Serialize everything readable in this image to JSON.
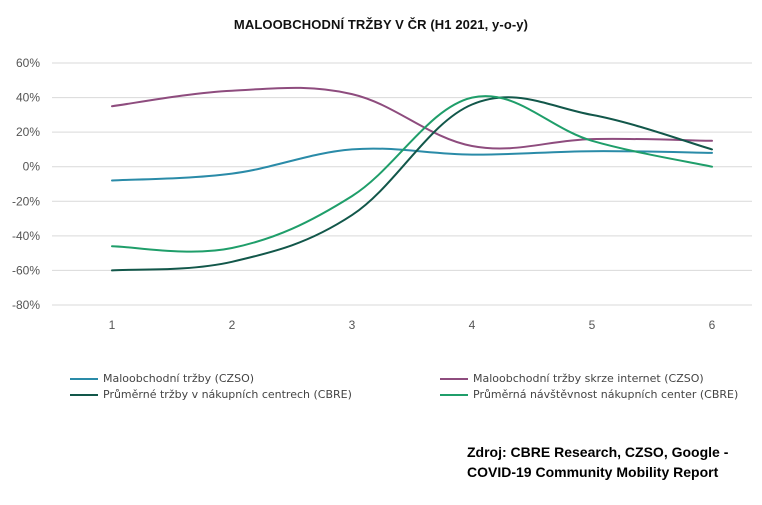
{
  "chart_data": {
    "type": "line",
    "title": "MALOOBCHODNÍ TRŽBY V ČR (H1 2021, y-o-y)",
    "xlabel": "",
    "ylabel": "",
    "x": [
      1,
      2,
      3,
      4,
      5,
      6
    ],
    "x_tick_labels": [
      "1",
      "2",
      "3",
      "4",
      "5",
      "6"
    ],
    "ylim": [
      -80,
      60
    ],
    "y_ticks": [
      60,
      40,
      20,
      0,
      -20,
      -40,
      -60,
      -80
    ],
    "y_tick_labels": [
      "60%",
      "40%",
      "20%",
      "0%",
      "-20%",
      "-40%",
      "-60%",
      "-80%"
    ],
    "grid": true,
    "legend_position": "bottom",
    "series": [
      {
        "name": "Maloobchodní tržby (CZSO)",
        "color": "#2A8BA8",
        "values": [
          -8,
          -4,
          10,
          7,
          9,
          8
        ]
      },
      {
        "name": "Maloobchodní tržby skrze internet (CZSO)",
        "color": "#8E4C7E",
        "values": [
          35,
          44,
          42,
          12,
          16,
          15
        ]
      },
      {
        "name": "Průměrné tržby v nákupních centrech (CBRE)",
        "color": "#12574A",
        "values": [
          -60,
          -55,
          -28,
          36,
          30,
          10
        ]
      },
      {
        "name": "Průměrná návštěvnost nákupních center (CBRE)",
        "color": "#1F9E6A",
        "values": [
          -46,
          -47,
          -17,
          40,
          15,
          0
        ]
      }
    ]
  },
  "source_line1": "Zdroj: CBRE Research, CZSO, Google -",
  "source_line2": "COVID-19 Community Mobility Report"
}
